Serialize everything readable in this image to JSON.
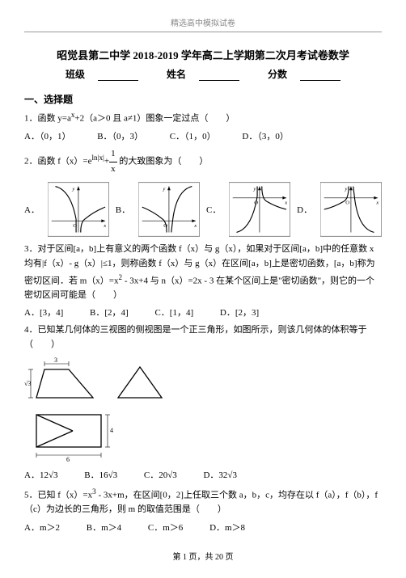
{
  "header": {
    "label": "精选高中模拟试卷"
  },
  "title": "昭觉县第二中学 2018-2019 学年高二上学期第二次月考试卷数学",
  "info": {
    "class_label": "班级",
    "name_label": "姓名",
    "score_label": "分数"
  },
  "section1": "一、选择题",
  "q1": {
    "stem": "1．函数 y=a<sup>x</sup>+2（a＞0 且 a≠1）图象一定过点（　　）",
    "A": "A．（0，1）",
    "B": "B．（0，3）",
    "C": "C．（1，0）",
    "D": "D．（3，0）"
  },
  "q2": {
    "stem": "2．函数 f（x）=e<sup>ln|x|</sup>+<span style='display:inline-block;vertical-align:middle;text-align:center'><span style='display:block;border-bottom:1px solid #000;padding:0 2px'>1</span><span style='display:block;padding:0 2px'>x</span></span> 的大致图象为（　　）",
    "labels": {
      "A": "A．",
      "B": "B．",
      "C": "C．",
      "D": "D．"
    }
  },
  "q3": {
    "stem": "3．对于区间[a，b]上有意义的两个函数 f（x）与 g（x），如果对于区间[a，b]中的任意数 x 均有|f（x）- g（x）|≤1，则称函数 f（x）与 g（x）在区间[a，b]上是密切函数，[a，b]称为密切区间．若 m（x）=x<sup>2</sup> - 3x+4 与 n（x）=2x - 3 在某个区间上是\"密切函数\"，则它的一个密切区间可能是（　　）",
    "A": "A．[3，4]",
    "B": "B．[2，4]",
    "C": "C．[1，4]",
    "D": "D．[2，3]"
  },
  "q4": {
    "stem": "4．已知某几何体的三视图的侧视图是一个正三角形，如图所示，则该几何体的体积等于（　　）",
    "A": "A．12√3",
    "B": "B．16√3",
    "C": "C．20√3",
    "D": "D．32√3",
    "dims": {
      "top_w": "3",
      "h_left": "2√3",
      "bot_w": "6",
      "bot_h": "4"
    }
  },
  "q5": {
    "stem": "5．已知 f（x）=x<sup>3</sup> - 3x+m，在区间[0，2]上任取三个数 a，b，c，均存在以 f（a），f（b），f（c）为边长的三角形，则 m 的取值范围是（　　）",
    "A": "A．m＞2",
    "B": "B．m＞4",
    "C": "C．m＞6",
    "D": "D．m＞8"
  },
  "footer": "第 1 页，共 20 页"
}
